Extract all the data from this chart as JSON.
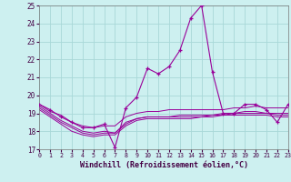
{
  "title": "Windchill (Refroidissement éolien,°C)",
  "bg_color": "#cdf0f0",
  "grid_color": "#a8d8d8",
  "line_color": "#990099",
  "ylim": [
    17,
    25
  ],
  "yticks": [
    17,
    18,
    19,
    20,
    21,
    22,
    23,
    24,
    25
  ],
  "xlim": [
    0,
    23
  ],
  "xticks": [
    0,
    1,
    2,
    3,
    4,
    5,
    6,
    7,
    8,
    9,
    10,
    11,
    12,
    13,
    14,
    15,
    16,
    17,
    18,
    19,
    20,
    21,
    22,
    23
  ],
  "hours": [
    0,
    1,
    2,
    3,
    4,
    5,
    6,
    7,
    8,
    9,
    10,
    11,
    12,
    13,
    14,
    15,
    16,
    17,
    18,
    19,
    20,
    21,
    22,
    23
  ],
  "windchill": [
    19.5,
    19.2,
    18.8,
    18.5,
    18.2,
    18.2,
    18.4,
    17.1,
    19.3,
    19.9,
    21.5,
    21.2,
    21.6,
    22.5,
    24.3,
    25.0,
    21.3,
    19.0,
    19.0,
    19.5,
    19.5,
    19.2,
    18.5,
    19.5
  ],
  "line1": [
    19.5,
    19.1,
    18.9,
    18.5,
    18.3,
    18.2,
    18.3,
    18.3,
    18.8,
    19.0,
    19.1,
    19.1,
    19.2,
    19.2,
    19.2,
    19.2,
    19.2,
    19.2,
    19.3,
    19.3,
    19.4,
    19.3,
    19.3,
    19.3
  ],
  "line2": [
    19.4,
    19.0,
    18.6,
    18.3,
    18.0,
    17.9,
    18.0,
    17.9,
    18.5,
    18.7,
    18.8,
    18.8,
    18.8,
    18.9,
    18.9,
    18.9,
    18.9,
    19.0,
    19.0,
    19.1,
    19.1,
    19.0,
    19.0,
    19.0
  ],
  "line3": [
    19.3,
    18.9,
    18.5,
    18.2,
    17.9,
    17.8,
    17.9,
    17.9,
    18.4,
    18.7,
    18.8,
    18.8,
    18.8,
    18.8,
    18.8,
    18.8,
    18.9,
    18.9,
    19.0,
    19.0,
    19.0,
    19.0,
    18.9,
    18.9
  ],
  "line4": [
    19.2,
    18.8,
    18.4,
    18.0,
    17.8,
    17.7,
    17.8,
    17.8,
    18.3,
    18.6,
    18.7,
    18.7,
    18.7,
    18.7,
    18.7,
    18.8,
    18.8,
    18.9,
    18.9,
    18.9,
    18.9,
    18.9,
    18.8,
    18.8
  ]
}
